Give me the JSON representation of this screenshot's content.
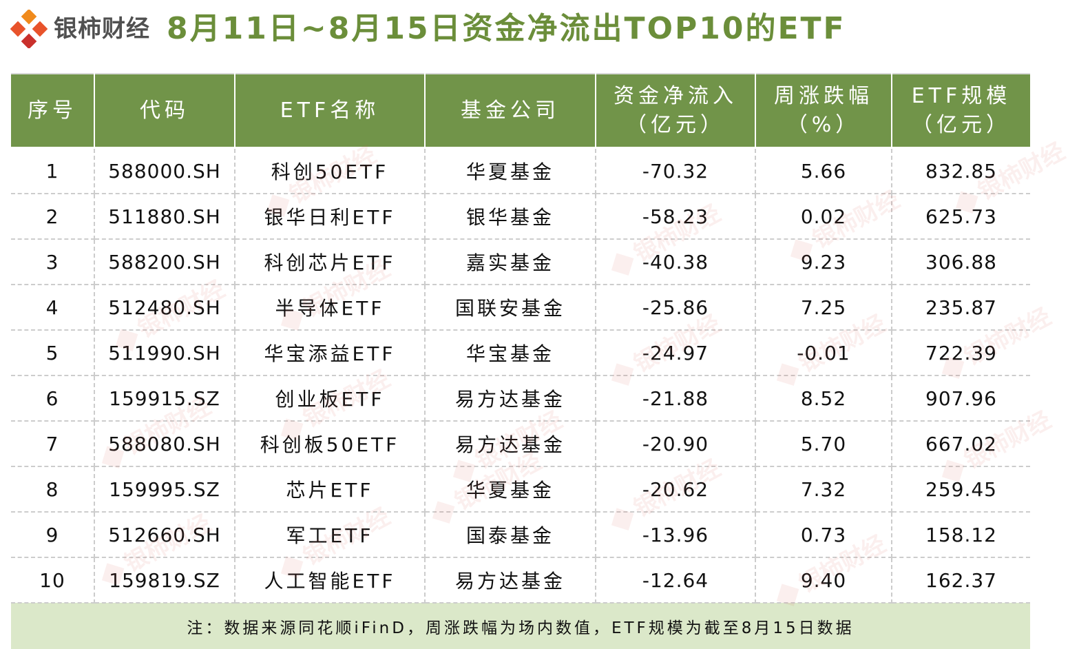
{
  "header": {
    "brand": "银柿财经",
    "title": "8月11日~8月15日资金净流出TOP10的ETF"
  },
  "colors": {
    "header_bg": "#719449",
    "title_color": "#6b8e3a",
    "footer_bg": "#dbe8c9",
    "logo_colors": [
      "#e8532b",
      "#f08a1c",
      "#c9302c"
    ]
  },
  "table": {
    "headers": [
      {
        "line1": "序号",
        "line2": ""
      },
      {
        "line1": "代码",
        "line2": ""
      },
      {
        "line1": "ETF名称",
        "line2": ""
      },
      {
        "line1": "基金公司",
        "line2": ""
      },
      {
        "line1": "资金净流入",
        "line2": "（亿元）"
      },
      {
        "line1": "周涨跌幅",
        "line2": "（%）"
      },
      {
        "line1": "ETF规模",
        "line2": "（亿元）"
      }
    ],
    "rows": [
      [
        "1",
        "588000.SH",
        "科创50ETF",
        "华夏基金",
        "-70.32",
        "5.66",
        "832.85"
      ],
      [
        "2",
        "511880.SH",
        "银华日利ETF",
        "银华基金",
        "-58.23",
        "0.02",
        "625.73"
      ],
      [
        "3",
        "588200.SH",
        "科创芯片ETF",
        "嘉实基金",
        "-40.38",
        "9.23",
        "306.88"
      ],
      [
        "4",
        "512480.SH",
        "半导体ETF",
        "国联安基金",
        "-25.86",
        "7.25",
        "235.87"
      ],
      [
        "5",
        "511990.SH",
        "华宝添益ETF",
        "华宝基金",
        "-24.97",
        "-0.01",
        "722.39"
      ],
      [
        "6",
        "159915.SZ",
        "创业板ETF",
        "易方达基金",
        "-21.88",
        "8.52",
        "907.96"
      ],
      [
        "7",
        "588080.SH",
        "科创板50ETF",
        "易方达基金",
        "-20.90",
        "5.70",
        "667.02"
      ],
      [
        "8",
        "159995.SZ",
        "芯片ETF",
        "华夏基金",
        "-20.62",
        "7.32",
        "259.45"
      ],
      [
        "9",
        "512660.SH",
        "军工ETF",
        "国泰基金",
        "-13.96",
        "0.73",
        "158.12"
      ],
      [
        "10",
        "159819.SZ",
        "人工智能ETF",
        "易方达基金",
        "-12.64",
        "9.40",
        "162.37"
      ]
    ],
    "footnote": "注：数据来源同花顺iFinD，周涨跌幅为场内数值，ETF规模为截至8月15日数据"
  },
  "watermark": {
    "text": "银柿财经"
  }
}
